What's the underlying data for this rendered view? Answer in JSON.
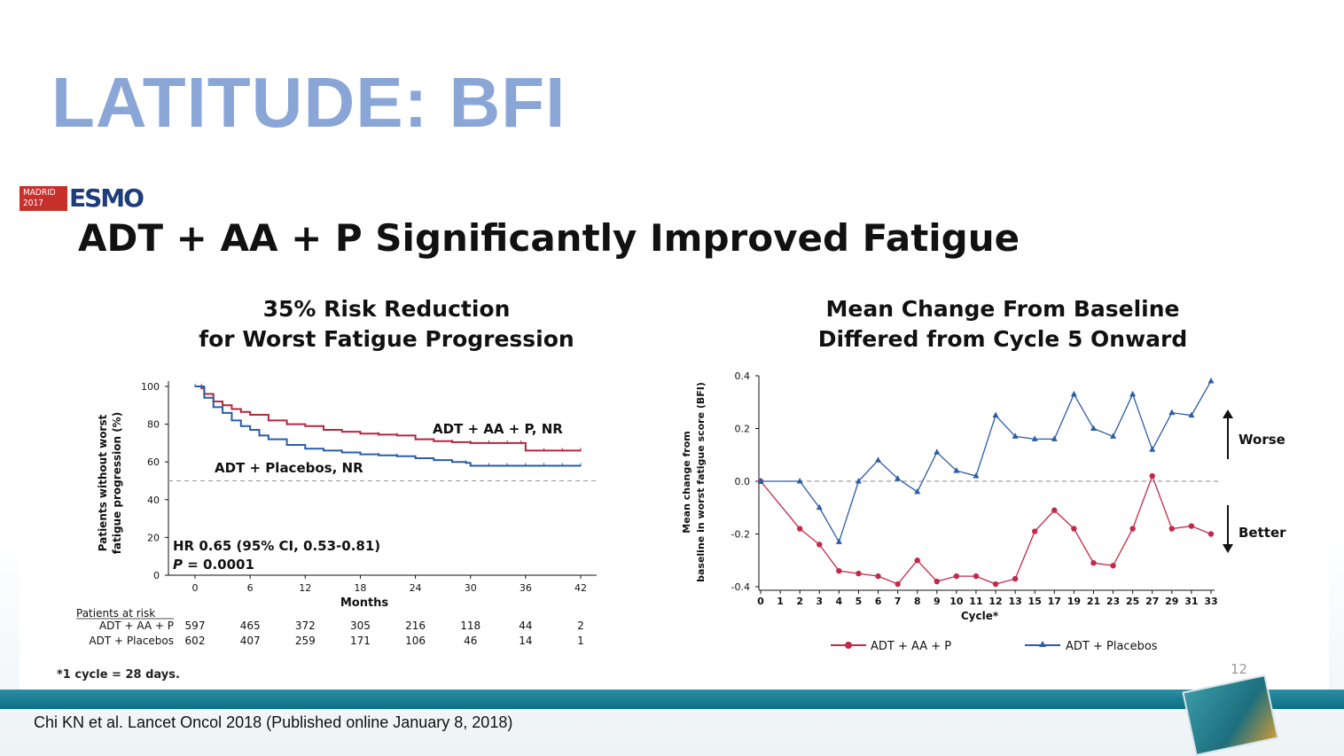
{
  "slide": {
    "title": "LATITUDE: BFI",
    "logo_city": "MADRID 2017",
    "logo_brand": "ESMO",
    "headline": "ADT + AA + P Significantly Improved Fatigue",
    "footnote": "*1 cycle = 28 days.",
    "page_number": "12",
    "citation": "Chi KN et al. Lancet Oncol 2018 (Published online January 8, 2018)"
  },
  "left_panel": {
    "title_line1": "35% Risk Reduction",
    "title_line2": "for Worst Fatigue Progression",
    "hr_text": "HR 0.65 (95% CI, 0.53-0.81)",
    "p_label": "P",
    "p_text": " = 0.0001",
    "risk_table": {
      "header": "Patients at risk",
      "rows": [
        {
          "label": "ADT + AA + P",
          "values": [
            "597",
            "465",
            "372",
            "305",
            "216",
            "118",
            "44",
            "2"
          ]
        },
        {
          "label": "ADT + Placebos",
          "values": [
            "602",
            "407",
            "259",
            "171",
            "106",
            "46",
            "14",
            "1"
          ]
        }
      ]
    }
  },
  "right_panel": {
    "title_line1": "Mean Change From Baseline",
    "title_line2": "Differed from Cycle 5 Onward",
    "worse_label": "Worse",
    "better_label": "Better"
  },
  "chart_data": [
    {
      "type": "line",
      "subtype": "kaplan-meier",
      "xlabel": "Months",
      "ylabel": "Patients without worst fatigue progression (%)",
      "xlim": [
        0,
        42
      ],
      "ylim": [
        0,
        100
      ],
      "xticks": [
        0,
        6,
        12,
        18,
        24,
        30,
        36,
        42
      ],
      "yticks": [
        0,
        20,
        40,
        60,
        80,
        100
      ],
      "reference_line": 50,
      "colors": {
        "ADT + AA + P, NR": "#b5263f",
        "ADT + Placebos, NR": "#2a5da8"
      },
      "series": [
        {
          "name": "ADT + AA + P, NR",
          "x": [
            0,
            0.7,
            1,
            2,
            3,
            4,
            5,
            6,
            8,
            10,
            12,
            14,
            16,
            18,
            20,
            22,
            24,
            26,
            28,
            30,
            32,
            34,
            35.5,
            36,
            38,
            40,
            42
          ],
          "y": [
            100,
            99,
            96,
            92,
            90,
            88,
            86.5,
            85,
            82,
            80,
            79,
            77,
            76,
            75,
            74.5,
            74,
            72,
            71,
            70.5,
            70,
            70,
            70,
            70,
            66,
            66,
            66,
            66
          ]
        },
        {
          "name": "ADT + Placebos, NR",
          "x": [
            0,
            0.7,
            1,
            2,
            3,
            4,
            5,
            6,
            7,
            8,
            10,
            12,
            14,
            16,
            18,
            20,
            22,
            24,
            26,
            28,
            29.5,
            30,
            32,
            34,
            36,
            38,
            40,
            42
          ],
          "y": [
            100,
            100,
            94,
            89,
            86,
            82,
            79,
            77,
            74,
            72,
            69,
            67,
            66,
            65,
            64,
            63.5,
            63,
            62,
            61,
            60,
            59.5,
            58,
            58,
            58,
            58,
            58,
            58,
            58
          ]
        }
      ]
    },
    {
      "type": "line",
      "xlabel": "Cycle*",
      "ylabel": "Mean change from baseline in worst fatigue score (BFI)",
      "ylim": [
        -0.4,
        0.4
      ],
      "yticks": [
        "-0.4",
        "-0.2",
        "0.0",
        "0.2",
        "0.4"
      ],
      "xticks": [
        0,
        1,
        2,
        3,
        4,
        5,
        6,
        7,
        8,
        9,
        10,
        11,
        12,
        13,
        15,
        17,
        19,
        21,
        23,
        25,
        27,
        29,
        31,
        33
      ],
      "reference_line": 0,
      "colors": {
        "ADT + AA + P": "#c22a48",
        "ADT + Placebos": "#2a5da8"
      },
      "series": [
        {
          "name": "ADT + AA + P",
          "x": [
            0,
            2,
            3,
            4,
            5,
            6,
            7,
            8,
            9,
            10,
            11,
            12,
            13,
            15,
            17,
            19,
            21,
            23,
            25,
            27,
            29,
            31,
            33
          ],
          "y": [
            0.0,
            -0.18,
            -0.24,
            -0.34,
            -0.35,
            -0.36,
            -0.39,
            -0.3,
            -0.38,
            -0.36,
            -0.36,
            -0.39,
            -0.37,
            -0.19,
            -0.11,
            -0.18,
            -0.31,
            -0.32,
            -0.18,
            0.02,
            -0.18,
            -0.17,
            -0.2
          ]
        },
        {
          "name": "ADT + Placebos",
          "x": [
            0,
            2,
            3,
            4,
            5,
            6,
            7,
            8,
            9,
            10,
            11,
            12,
            13,
            15,
            17,
            19,
            21,
            23,
            25,
            27,
            29,
            31,
            33
          ],
          "y": [
            0.0,
            0.0,
            -0.1,
            -0.23,
            0.0,
            0.08,
            0.01,
            -0.04,
            0.11,
            0.04,
            0.02,
            0.25,
            0.17,
            0.16,
            0.16,
            0.33,
            0.2,
            0.17,
            0.33,
            0.12,
            0.26,
            0.25,
            0.38
          ]
        }
      ]
    }
  ]
}
